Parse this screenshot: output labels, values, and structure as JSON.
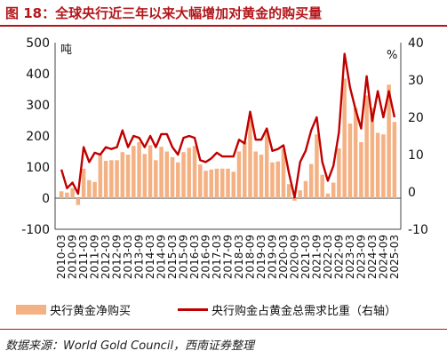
{
  "title": "图 18：全球央行近三年以来大幅增加对黄金的购买量",
  "source": "数据来源：World Gold Council，西南证券整理",
  "chart_data": {
    "type": "bar+line",
    "title": "图 18：全球央行近三年以来大幅增加对黄金的购买量",
    "categories": [
      "2010-03",
      "2010-06",
      "2010-09",
      "2010-12",
      "2011-03",
      "2011-06",
      "2011-09",
      "2011-12",
      "2012-03",
      "2012-06",
      "2012-09",
      "2012-12",
      "2013-03",
      "2013-06",
      "2013-09",
      "2013-12",
      "2014-03",
      "2014-06",
      "2014-09",
      "2014-12",
      "2015-03",
      "2015-06",
      "2015-09",
      "2015-12",
      "2016-03",
      "2016-06",
      "2016-09",
      "2016-12",
      "2017-03",
      "2017-06",
      "2017-09",
      "2017-12",
      "2018-03",
      "2018-06",
      "2018-09",
      "2018-12",
      "2019-03",
      "2019-06",
      "2019-09",
      "2019-12",
      "2020-03",
      "2020-06",
      "2020-09",
      "2020-12",
      "2021-03",
      "2021-06",
      "2021-09",
      "2021-12",
      "2022-03",
      "2022-06",
      "2022-09",
      "2022-12",
      "2023-03",
      "2023-06",
      "2023-09",
      "2023-12",
      "2024-03",
      "2024-06",
      "2024-09",
      "2024-12",
      "2025-03"
    ],
    "x_tick_labels": [
      "2010-03",
      "2010-09",
      "2011-03",
      "2011-09",
      "2012-03",
      "2012-09",
      "2013-03",
      "2013-09",
      "2014-03",
      "2014-09",
      "2015-03",
      "2015-09",
      "2016-03",
      "2016-09",
      "2017-03",
      "2017-09",
      "2018-03",
      "2018-09",
      "2019-03",
      "2019-09",
      "2020-03",
      "2020-09",
      "2021-03",
      "2021-09",
      "2022-03",
      "2022-09",
      "2023-03",
      "2023-09",
      "2024-03",
      "2024-09",
      "2025-03"
    ],
    "series": [
      {
        "name": "央行黄金净购买",
        "type": "bar",
        "axis": "left",
        "color": "#f4b183",
        "values": [
          22,
          18,
          32,
          -22,
          95,
          58,
          52,
          140,
          120,
          122,
          122,
          148,
          140,
          168,
          180,
          142,
          170,
          122,
          165,
          150,
          132,
          115,
          148,
          162,
          168,
          108,
          88,
          92,
          95,
          95,
          95,
          85,
          150,
          180,
          255,
          150,
          140,
          215,
          115,
          118,
          158,
          45,
          -8,
          25,
          55,
          110,
          205,
          75,
          15,
          50,
          160,
          385,
          240,
          290,
          180,
          330,
          290,
          210,
          205,
          365,
          245
        ]
      },
      {
        "name": "央行购金占黄金总需求比重（右轴）",
        "type": "line",
        "axis": "right",
        "color": "#c00000",
        "values": [
          6,
          1,
          2.5,
          -0.5,
          12,
          8,
          10.5,
          10,
          12,
          11.5,
          12,
          16.5,
          12,
          15,
          14.5,
          12,
          15,
          12,
          15.5,
          15.5,
          12,
          10,
          14.5,
          15,
          14.5,
          8.5,
          8,
          9,
          10.5,
          9.5,
          9.5,
          9.5,
          14,
          13,
          21.5,
          14,
          14,
          17,
          11,
          11.5,
          12.5,
          5,
          -1.5,
          8,
          11,
          16.5,
          20,
          8,
          3,
          7,
          16,
          37,
          28,
          22,
          17,
          31,
          19,
          27,
          20,
          27,
          20
        ]
      }
    ],
    "yaxis_left": {
      "unit": "吨",
      "ylim": [
        -100,
        500
      ],
      "ticks": [
        -100,
        0,
        100,
        200,
        300,
        400,
        500
      ]
    },
    "yaxis_right": {
      "unit": "%",
      "ylim": [
        -10,
        40
      ],
      "ticks": [
        -10,
        0,
        10,
        20,
        30,
        40
      ]
    },
    "grid": false,
    "legend": "bottom"
  }
}
